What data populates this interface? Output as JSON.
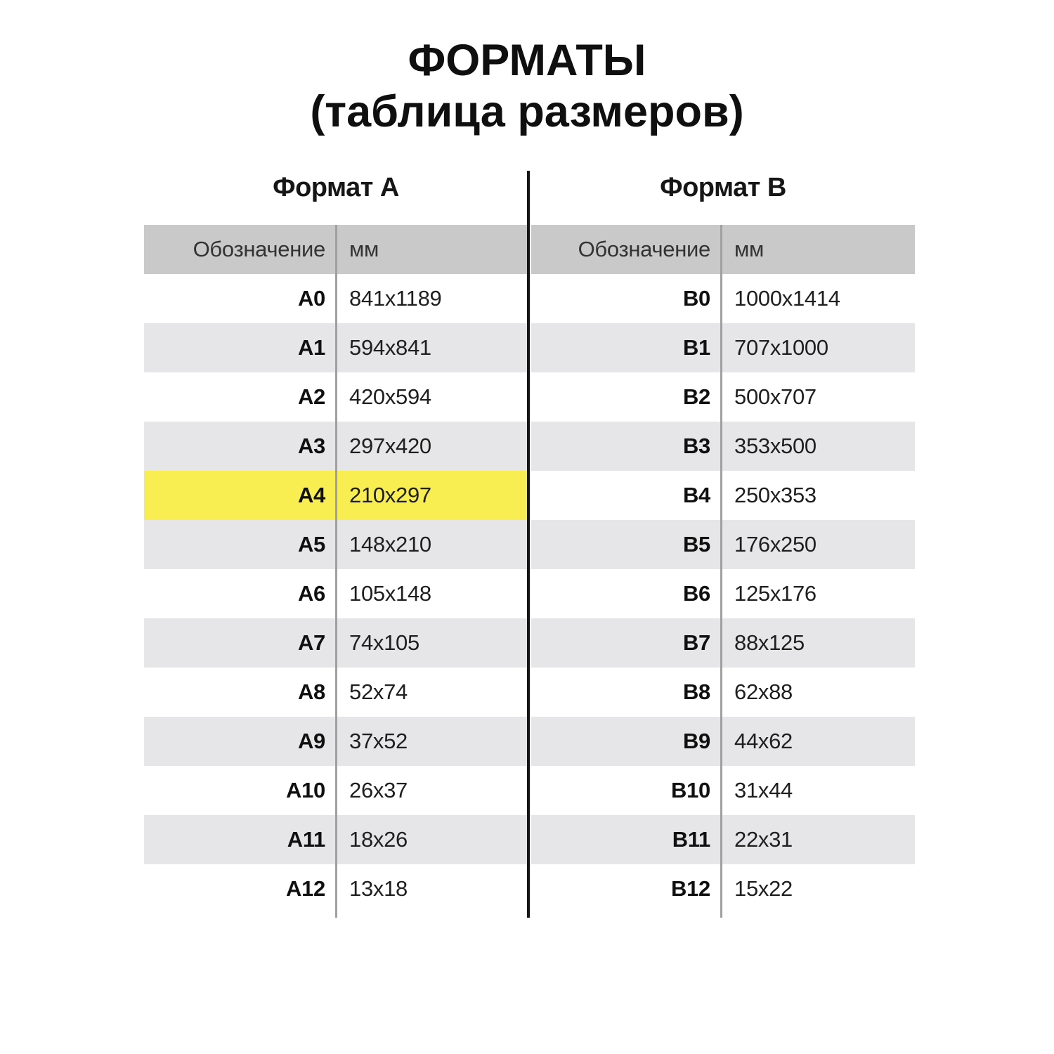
{
  "title": {
    "line1": "ФОРМАТЫ",
    "line2": "(таблица размеров)"
  },
  "tables": [
    {
      "heading": "Формат А",
      "columns": {
        "designation": "Обозначение",
        "mm": "мм"
      },
      "rows": [
        {
          "code": "А0",
          "mm": "841x1189",
          "highlight": false
        },
        {
          "code": "А1",
          "mm": "594x841",
          "highlight": false
        },
        {
          "code": "А2",
          "mm": "420x594",
          "highlight": false
        },
        {
          "code": "А3",
          "mm": "297x420",
          "highlight": false
        },
        {
          "code": "А4",
          "mm": "210x297",
          "highlight": true
        },
        {
          "code": "А5",
          "mm": "148x210",
          "highlight": false
        },
        {
          "code": "А6",
          "mm": "105x148",
          "highlight": false
        },
        {
          "code": "А7",
          "mm": "74x105",
          "highlight": false
        },
        {
          "code": "А8",
          "mm": "52x74",
          "highlight": false
        },
        {
          "code": "А9",
          "mm": "37x52",
          "highlight": false
        },
        {
          "code": "А10",
          "mm": "26x37",
          "highlight": false
        },
        {
          "code": "А11",
          "mm": "18x26",
          "highlight": false
        },
        {
          "code": "А12",
          "mm": "13x18",
          "highlight": false
        }
      ]
    },
    {
      "heading": "Формат B",
      "columns": {
        "designation": "Обозначение",
        "mm": "мм"
      },
      "rows": [
        {
          "code": "B0",
          "mm": "1000x1414",
          "highlight": false
        },
        {
          "code": "B1",
          "mm": "707x1000",
          "highlight": false
        },
        {
          "code": "B2",
          "mm": "500x707",
          "highlight": false
        },
        {
          "code": "B3",
          "mm": "353x500",
          "highlight": false
        },
        {
          "code": "B4",
          "mm": "250x353",
          "highlight": false
        },
        {
          "code": "B5",
          "mm": "176x250",
          "highlight": false
        },
        {
          "code": "B6",
          "mm": "125x176",
          "highlight": false
        },
        {
          "code": "B7",
          "mm": "88x125",
          "highlight": false
        },
        {
          "code": "B8",
          "mm": "62x88",
          "highlight": false
        },
        {
          "code": "B9",
          "mm": "44x62",
          "highlight": false
        },
        {
          "code": "B10",
          "mm": "31x44",
          "highlight": false
        },
        {
          "code": "B11",
          "mm": "22x31",
          "highlight": false
        },
        {
          "code": "B12",
          "mm": "15x22",
          "highlight": false
        }
      ]
    }
  ],
  "colors": {
    "highlight_yellow": "#f8ed51",
    "header_gray": "#c9c9c9",
    "alt_row_gray": "#e6e6e8",
    "center_line": "#151515",
    "column_divider": "#a0a0a0"
  },
  "chart_data": {
    "type": "table",
    "title": "ФОРМАТЫ (таблица размеров)",
    "tables": [
      {
        "name": "Формат А",
        "columns": [
          "Обозначение",
          "мм"
        ],
        "rows": [
          [
            "А0",
            "841x1189"
          ],
          [
            "А1",
            "594x841"
          ],
          [
            "А2",
            "420x594"
          ],
          [
            "А3",
            "297x420"
          ],
          [
            "А4",
            "210x297"
          ],
          [
            "А5",
            "148x210"
          ],
          [
            "А6",
            "105x148"
          ],
          [
            "А7",
            "74x105"
          ],
          [
            "А8",
            "52x74"
          ],
          [
            "А9",
            "37x52"
          ],
          [
            "А10",
            "26x37"
          ],
          [
            "А11",
            "18x26"
          ],
          [
            "А12",
            "13x18"
          ]
        ],
        "highlighted_row": "А4"
      },
      {
        "name": "Формат B",
        "columns": [
          "Обозначение",
          "мм"
        ],
        "rows": [
          [
            "B0",
            "1000x1414"
          ],
          [
            "B1",
            "707x1000"
          ],
          [
            "B2",
            "500x707"
          ],
          [
            "B3",
            "353x500"
          ],
          [
            "B4",
            "250x353"
          ],
          [
            "B5",
            "176x250"
          ],
          [
            "B6",
            "125x176"
          ],
          [
            "B7",
            "88x125"
          ],
          [
            "B8",
            "62x88"
          ],
          [
            "B9",
            "44x62"
          ],
          [
            "B10",
            "31x44"
          ],
          [
            "B11",
            "22x31"
          ],
          [
            "B12",
            "15x22"
          ]
        ],
        "highlighted_row": null
      }
    ]
  }
}
